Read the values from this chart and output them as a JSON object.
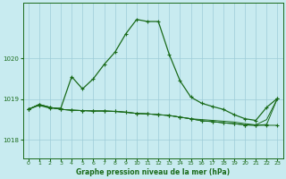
{
  "title": "Graphe pression niveau de la mer (hPa)",
  "background_color": "#c8ebf0",
  "grid_color": "#9eccd8",
  "line_color": "#1a6b1a",
  "xlim": [
    -0.5,
    23.5
  ],
  "ylim": [
    1017.55,
    1021.35
  ],
  "yticks": [
    1018,
    1019,
    1020
  ],
  "xticks": [
    0,
    1,
    2,
    3,
    4,
    5,
    6,
    7,
    8,
    9,
    10,
    11,
    12,
    13,
    14,
    15,
    16,
    17,
    18,
    19,
    20,
    21,
    22,
    23
  ],
  "series_main": {
    "x": [
      0,
      1,
      2,
      3,
      4,
      5,
      6,
      7,
      8,
      9,
      10,
      11,
      12,
      13,
      14,
      15,
      16,
      17,
      18,
      19,
      20,
      21,
      22,
      23
    ],
    "y": [
      1018.75,
      1018.85,
      1018.78,
      1018.78,
      1019.55,
      1019.25,
      1019.5,
      1019.85,
      1020.15,
      1020.6,
      1020.95,
      1020.9,
      1020.9,
      1020.1,
      1019.45,
      1019.05,
      1018.9,
      1018.82,
      1018.75,
      1018.62,
      1018.52,
      1018.48,
      1018.8,
      1019.02
    ]
  },
  "series_flat1": {
    "x": [
      0,
      1,
      2,
      3,
      4,
      5,
      6,
      7,
      8,
      9,
      10,
      11,
      12,
      13,
      14,
      15,
      16,
      17,
      18,
      19,
      20,
      21,
      22,
      23
    ],
    "y": [
      1018.75,
      1018.87,
      1018.8,
      1018.75,
      1018.73,
      1018.72,
      1018.71,
      1018.71,
      1018.7,
      1018.68,
      1018.65,
      1018.64,
      1018.62,
      1018.6,
      1018.56,
      1018.52,
      1018.47,
      1018.45,
      1018.42,
      1018.4,
      1018.37,
      1018.36,
      1018.36,
      1018.36
    ]
  },
  "series_flat2": {
    "x": [
      0,
      1,
      2,
      3,
      4,
      5,
      6,
      7,
      8,
      9,
      10,
      11,
      12,
      13,
      14,
      15,
      16,
      17,
      18,
      19,
      20,
      21,
      22,
      23
    ],
    "y": [
      1018.75,
      1018.87,
      1018.8,
      1018.75,
      1018.73,
      1018.72,
      1018.71,
      1018.71,
      1018.7,
      1018.68,
      1018.65,
      1018.64,
      1018.62,
      1018.6,
      1018.56,
      1018.52,
      1018.47,
      1018.45,
      1018.42,
      1018.4,
      1018.37,
      1018.36,
      1018.38,
      1019.02
    ]
  },
  "series_flat3": {
    "x": [
      0,
      1,
      2,
      3,
      4,
      5,
      6,
      7,
      8,
      9,
      10,
      11,
      12,
      13,
      14,
      15,
      16,
      17,
      18,
      19,
      20,
      21,
      22,
      23
    ],
    "y": [
      1018.75,
      1018.87,
      1018.8,
      1018.75,
      1018.73,
      1018.72,
      1018.71,
      1018.71,
      1018.7,
      1018.68,
      1018.65,
      1018.64,
      1018.62,
      1018.6,
      1018.56,
      1018.52,
      1018.5,
      1018.48,
      1018.46,
      1018.44,
      1018.4,
      1018.37,
      1018.5,
      1019.02
    ]
  }
}
